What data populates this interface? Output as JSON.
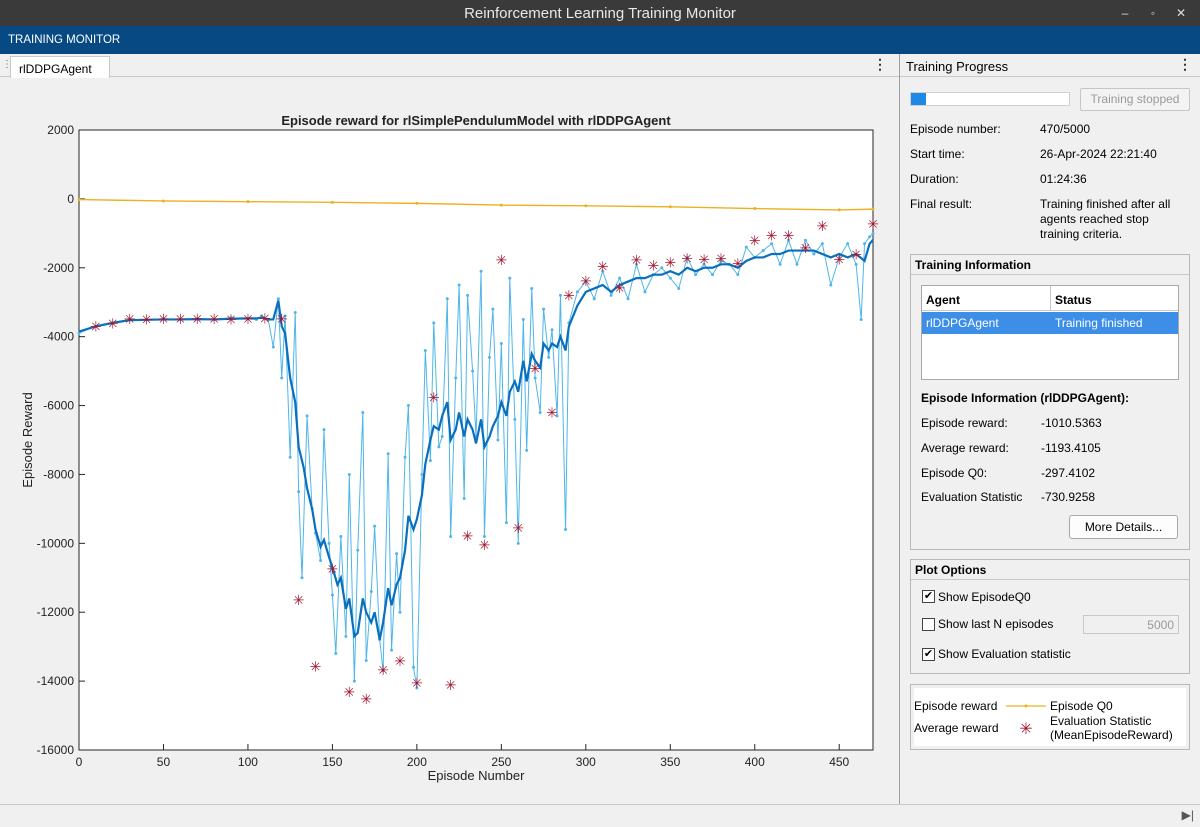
{
  "window": {
    "title": "Reinforcement Learning Training Monitor",
    "controls": [
      "minimize",
      "restore",
      "close"
    ]
  },
  "toolstrip": {
    "tab_label": "TRAINING MONITOR"
  },
  "document_tab": {
    "label": "rlDDPGAgent"
  },
  "progress_panel": {
    "header": "Training Progress",
    "progress_fraction": 0.094,
    "stop_button": "Training stopped",
    "episode_number_label": "Episode number:",
    "episode_number_value": "470/5000",
    "start_time_label": "Start time:",
    "start_time_value": "26-Apr-2024 22:21:40",
    "duration_label": "Duration:",
    "duration_value": "01:24:36",
    "final_result_label": "Final result:",
    "final_result_value": "Training finished after all agents reached stop training criteria."
  },
  "training_info": {
    "title": "Training Information",
    "table_headers": [
      "Agent",
      "Status"
    ],
    "rows": [
      {
        "agent": "rlDDPGAgent",
        "status": "Training finished"
      }
    ],
    "episode_info_title": "Episode Information (rlDDPGAgent):",
    "episode_reward_label": "Episode reward:",
    "episode_reward_value": "-1010.5363",
    "average_reward_label": "Average reward:",
    "average_reward_value": "-1193.4105",
    "episode_q0_label": "Episode Q0:",
    "episode_q0_value": "-297.4102",
    "eval_stat_label": "Evaluation Statistic",
    "eval_stat_value": "-730.9258",
    "more_details_button": "More Details..."
  },
  "plot_options": {
    "title": "Plot Options",
    "show_q0_label": "Show EpisodeQ0",
    "show_q0_checked": true,
    "show_last_n_label": "Show last N episodes",
    "show_last_n_checked": false,
    "last_n_value": "5000",
    "show_eval_label": "Show Evaluation statistic",
    "show_eval_checked": true
  },
  "legend": {
    "episode_reward": "Episode reward",
    "average_reward": "Average reward",
    "episode_q0": "Episode Q0",
    "evaluation_statistic_line1": "Evaluation Statistic",
    "evaluation_statistic_line2": "(MeanEpisodeReward)"
  },
  "colors": {
    "episode_reward": "#4fb6e8",
    "average_reward": "#0a6fbd",
    "episode_q0": "#edb120",
    "evaluation": "#a2142f",
    "toolstrip": "#074a83",
    "titlebar": "#3a3a3a"
  },
  "chart_data": {
    "type": "line",
    "title": "Episode reward for rlSimplePendulumModel with rlDDPGAgent",
    "xlabel": "Episode Number",
    "ylabel": "Episode Reward",
    "xlim": [
      0,
      470
    ],
    "ylim": [
      -16000,
      2000
    ],
    "xticks": [
      0,
      50,
      100,
      150,
      200,
      250,
      300,
      350,
      400,
      450
    ],
    "yticks": [
      2000,
      0,
      -2000,
      -4000,
      -6000,
      -8000,
      -10000,
      -12000,
      -14000,
      -16000
    ],
    "grid": false,
    "series": [
      {
        "name": "Episode reward",
        "x": [
          0,
          10,
          20,
          30,
          40,
          50,
          60,
          70,
          80,
          90,
          100,
          105,
          108,
          112,
          115,
          118,
          120,
          122,
          125,
          128,
          130,
          132,
          135,
          138,
          140,
          143,
          145,
          148,
          150,
          152,
          155,
          158,
          160,
          163,
          165,
          168,
          170,
          173,
          175,
          178,
          180,
          183,
          185,
          188,
          190,
          193,
          195,
          198,
          200,
          203,
          205,
          208,
          210,
          213,
          215,
          218,
          220,
          223,
          225,
          228,
          230,
          233,
          235,
          238,
          240,
          243,
          245,
          248,
          250,
          253,
          255,
          258,
          260,
          263,
          265,
          268,
          270,
          273,
          275,
          278,
          280,
          283,
          285,
          288,
          290,
          295,
          300,
          305,
          310,
          315,
          320,
          325,
          330,
          335,
          340,
          345,
          350,
          355,
          360,
          365,
          370,
          375,
          380,
          385,
          390,
          395,
          400,
          405,
          410,
          415,
          420,
          425,
          430,
          435,
          440,
          445,
          450,
          455,
          460,
          463,
          465,
          468,
          470
        ],
        "y": [
          -3900,
          -3700,
          -3600,
          -3500,
          -3500,
          -3480,
          -3500,
          -3480,
          -3500,
          -3450,
          -3480,
          -3500,
          -3400,
          -3500,
          -4300,
          -2900,
          -5200,
          -3400,
          -7500,
          -3300,
          -8500,
          -11000,
          -6300,
          -9000,
          -9700,
          -10500,
          -6700,
          -10000,
          -11500,
          -13200,
          -9800,
          -12700,
          -8000,
          -14000,
          -10200,
          -6200,
          -13400,
          -11400,
          -9500,
          -12800,
          -13700,
          -7400,
          -13100,
          -10300,
          -12000,
          -7500,
          -6000,
          -13600,
          -14200,
          -8000,
          -4400,
          -7600,
          -3600,
          -7200,
          -6900,
          -2900,
          -9800,
          -5200,
          -2500,
          -8700,
          -2800,
          -5000,
          -6900,
          -2100,
          -9800,
          -4600,
          -3200,
          -7000,
          -4200,
          -9400,
          -2300,
          -6400,
          -10000,
          -3500,
          -7300,
          -2600,
          -5200,
          -6200,
          -3200,
          -4600,
          -3800,
          -6300,
          -2800,
          -9600,
          -3600,
          -2700,
          -2400,
          -2900,
          -2100,
          -2800,
          -2300,
          -2900,
          -1900,
          -2700,
          -2200,
          -2000,
          -2300,
          -2600,
          -1700,
          -2200,
          -1900,
          -2200,
          -1800,
          -1900,
          -2200,
          -1400,
          -1700,
          -1500,
          -1300,
          -1900,
          -1200,
          -1900,
          -1200,
          -1600,
          -1300,
          -2500,
          -1700,
          -1300,
          -1900,
          -3500,
          -1300,
          -1100,
          -1010
        ]
      },
      {
        "name": "Average reward",
        "x": [
          0,
          10,
          20,
          30,
          40,
          50,
          60,
          70,
          80,
          90,
          100,
          105,
          108,
          112,
          115,
          118,
          120,
          122,
          125,
          128,
          130,
          133,
          135,
          138,
          140,
          143,
          145,
          148,
          150,
          153,
          155,
          158,
          160,
          163,
          165,
          168,
          170,
          173,
          175,
          178,
          180,
          183,
          185,
          188,
          190,
          193,
          195,
          198,
          200,
          203,
          205,
          208,
          210,
          213,
          215,
          218,
          220,
          223,
          225,
          228,
          230,
          233,
          235,
          238,
          240,
          243,
          245,
          248,
          250,
          253,
          255,
          258,
          260,
          263,
          265,
          268,
          270,
          273,
          275,
          278,
          280,
          283,
          285,
          288,
          290,
          295,
          300,
          305,
          310,
          315,
          320,
          325,
          330,
          335,
          340,
          345,
          350,
          355,
          360,
          365,
          370,
          375,
          380,
          385,
          390,
          395,
          400,
          405,
          410,
          415,
          420,
          425,
          430,
          435,
          440,
          445,
          450,
          455,
          460,
          465,
          468,
          470
        ],
        "y": [
          -3850,
          -3700,
          -3600,
          -3520,
          -3510,
          -3500,
          -3500,
          -3490,
          -3500,
          -3480,
          -3470,
          -3470,
          -3450,
          -3500,
          -3500,
          -2950,
          -3700,
          -3900,
          -5200,
          -5900,
          -7200,
          -7800,
          -8400,
          -9000,
          -9600,
          -10100,
          -9900,
          -10400,
          -10700,
          -11200,
          -11000,
          -11900,
          -11600,
          -12700,
          -12600,
          -11600,
          -12000,
          -12300,
          -12000,
          -12800,
          -12300,
          -11300,
          -11800,
          -11200,
          -11000,
          -10200,
          -9200,
          -9600,
          -9300,
          -8600,
          -7700,
          -7000,
          -6600,
          -6700,
          -6300,
          -5900,
          -7000,
          -6700,
          -6200,
          -6900,
          -6400,
          -6700,
          -7100,
          -6400,
          -7200,
          -6900,
          -6600,
          -6300,
          -5900,
          -6300,
          -5600,
          -5300,
          -5600,
          -4700,
          -5300,
          -4500,
          -4700,
          -4900,
          -4200,
          -4400,
          -4200,
          -4300,
          -4000,
          -4400,
          -3700,
          -3100,
          -2700,
          -2600,
          -2500,
          -2700,
          -2500,
          -2400,
          -2300,
          -2300,
          -2200,
          -2200,
          -2100,
          -2200,
          -2000,
          -2100,
          -2000,
          -2000,
          -1900,
          -1900,
          -2000,
          -1800,
          -1700,
          -1700,
          -1600,
          -1600,
          -1500,
          -1500,
          -1500,
          -1500,
          -1600,
          -1700,
          -1600,
          -1700,
          -1600,
          -1800,
          -1300,
          -1193
        ]
      },
      {
        "name": "Episode Q0",
        "x": [
          0,
          50,
          100,
          150,
          200,
          250,
          300,
          350,
          400,
          450,
          470
        ],
        "y": [
          -20,
          -60,
          -80,
          -100,
          -130,
          -180,
          -200,
          -230,
          -280,
          -320,
          -297
        ]
      },
      {
        "name": "Evaluation Statistic (MeanEpisodeReward)",
        "x": [
          10,
          20,
          30,
          40,
          50,
          60,
          70,
          80,
          90,
          100,
          110,
          120,
          130,
          140,
          150,
          160,
          170,
          180,
          190,
          200,
          210,
          220,
          230,
          240,
          250,
          260,
          270,
          280,
          290,
          300,
          310,
          320,
          330,
          340,
          350,
          360,
          370,
          380,
          390,
          400,
          410,
          420,
          430,
          440,
          450,
          460,
          470
        ],
        "y": [
          -3700,
          -3620,
          -3480,
          -3500,
          -3480,
          -3480,
          -3480,
          -3480,
          -3500,
          -3480,
          -3470,
          -3480,
          -11650,
          -13570,
          -10750,
          -14320,
          -14520,
          -13680,
          -13420,
          -14050,
          -5760,
          -14120,
          -9780,
          -10050,
          -1780,
          -9550,
          -4930,
          -6200,
          -2800,
          -2380,
          -1970,
          -2590,
          -1780,
          -1940,
          -1840,
          -1730,
          -1760,
          -1730,
          -1870,
          -1210,
          -1070,
          -1060,
          -1430,
          -790,
          -1760,
          -1620,
          -731
        ]
      }
    ]
  }
}
